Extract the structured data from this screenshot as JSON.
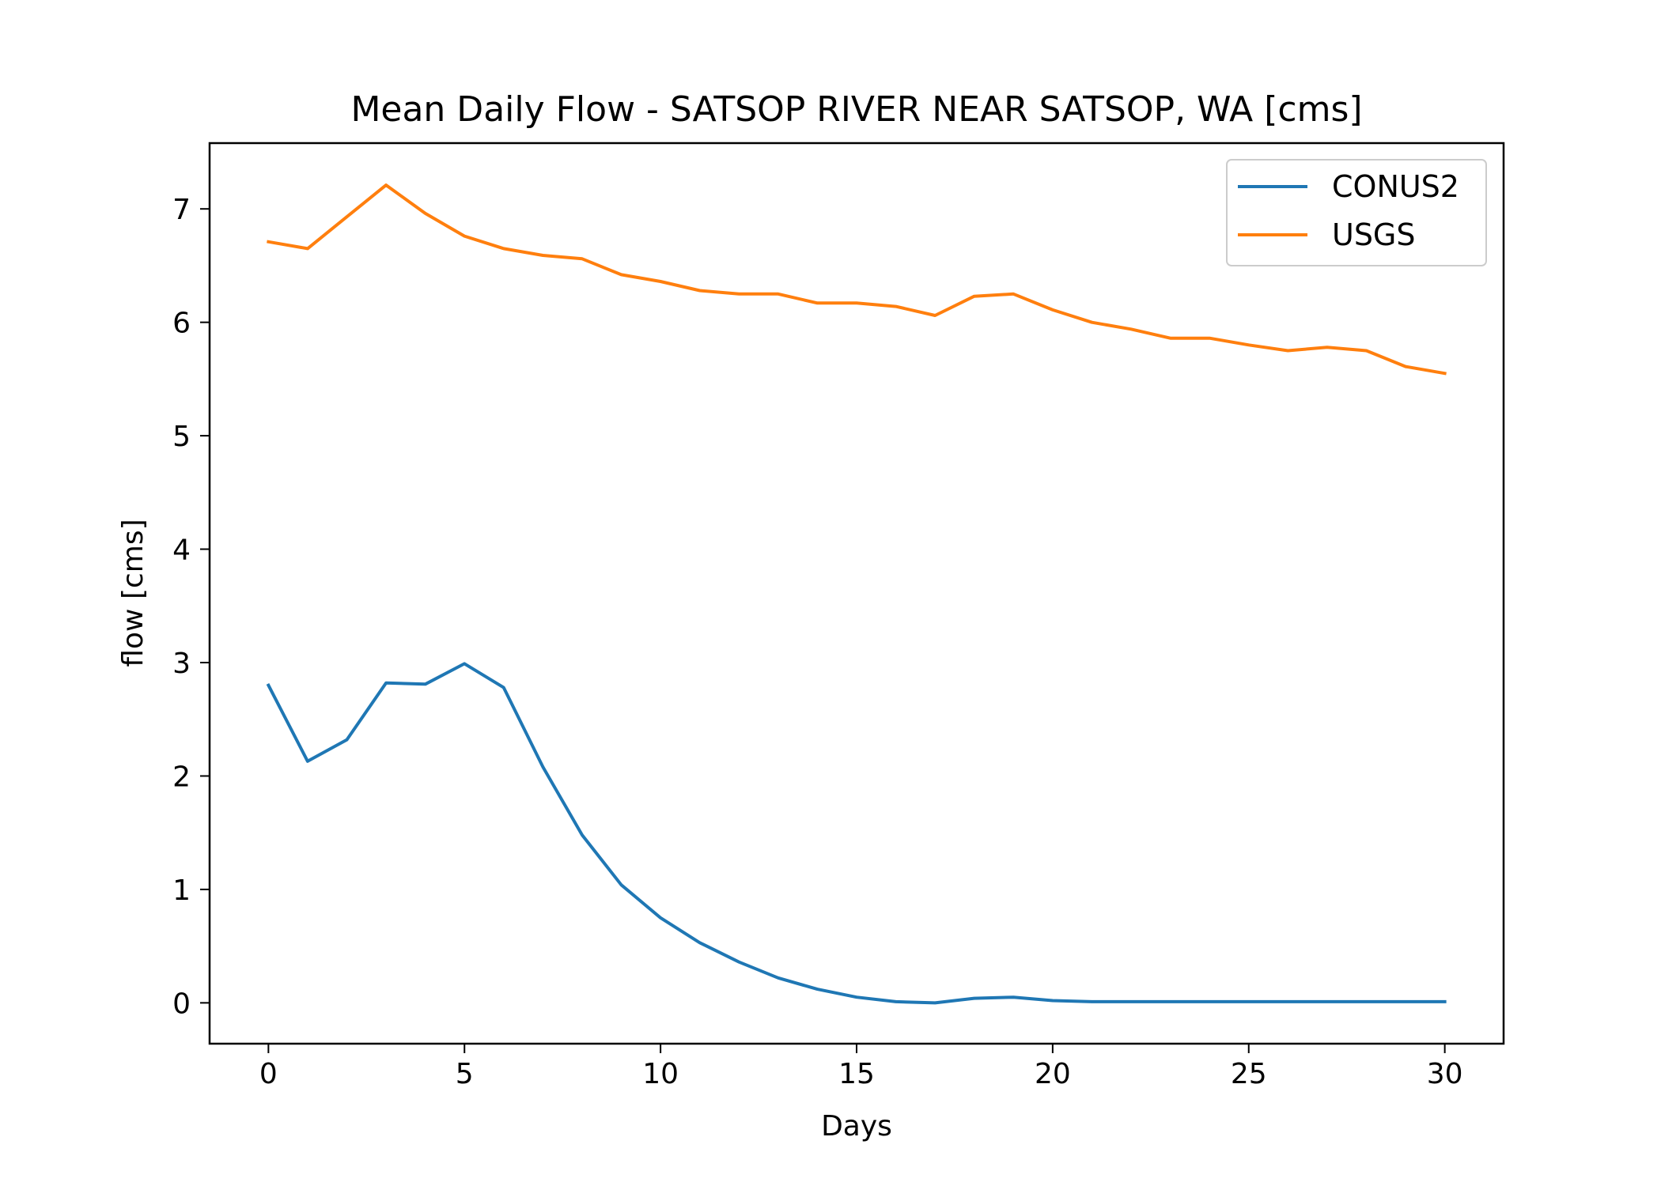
{
  "chart_data": {
    "type": "line",
    "title": "Mean Daily Flow - SATSOP RIVER NEAR SATSOP, WA [cms]",
    "xlabel": "Days",
    "ylabel": "flow [cms]",
    "xlim": [
      -1.5,
      31.5
    ],
    "ylim": [
      -0.36,
      7.58
    ],
    "xticks": [
      0,
      5,
      10,
      15,
      20,
      25,
      30
    ],
    "yticks": [
      0,
      1,
      2,
      3,
      4,
      5,
      6,
      7
    ],
    "grid": false,
    "legend_position": "top-right",
    "x": [
      0,
      1,
      2,
      3,
      4,
      5,
      6,
      7,
      8,
      9,
      10,
      11,
      12,
      13,
      14,
      15,
      16,
      17,
      18,
      19,
      20,
      21,
      22,
      23,
      24,
      25,
      26,
      27,
      28,
      29,
      30
    ],
    "series": [
      {
        "name": "CONUS2",
        "color": "#1f77b4",
        "values": [
          2.8,
          2.13,
          2.32,
          2.82,
          2.81,
          2.99,
          2.78,
          2.08,
          1.48,
          1.04,
          0.75,
          0.53,
          0.36,
          0.22,
          0.12,
          0.05,
          0.01,
          0.0,
          0.04,
          0.05,
          0.02,
          0.01,
          0.01,
          0.01,
          0.01,
          0.01,
          0.01,
          0.01,
          0.01,
          0.01,
          0.01
        ]
      },
      {
        "name": "USGS",
        "color": "#ff7f0e",
        "values": [
          6.71,
          6.65,
          6.93,
          7.21,
          6.96,
          6.76,
          6.65,
          6.59,
          6.56,
          6.42,
          6.36,
          6.28,
          6.25,
          6.25,
          6.17,
          6.17,
          6.14,
          6.06,
          6.23,
          6.25,
          6.11,
          6.0,
          5.94,
          5.86,
          5.86,
          5.8,
          5.75,
          5.78,
          5.75,
          5.61,
          5.55
        ]
      }
    ]
  }
}
